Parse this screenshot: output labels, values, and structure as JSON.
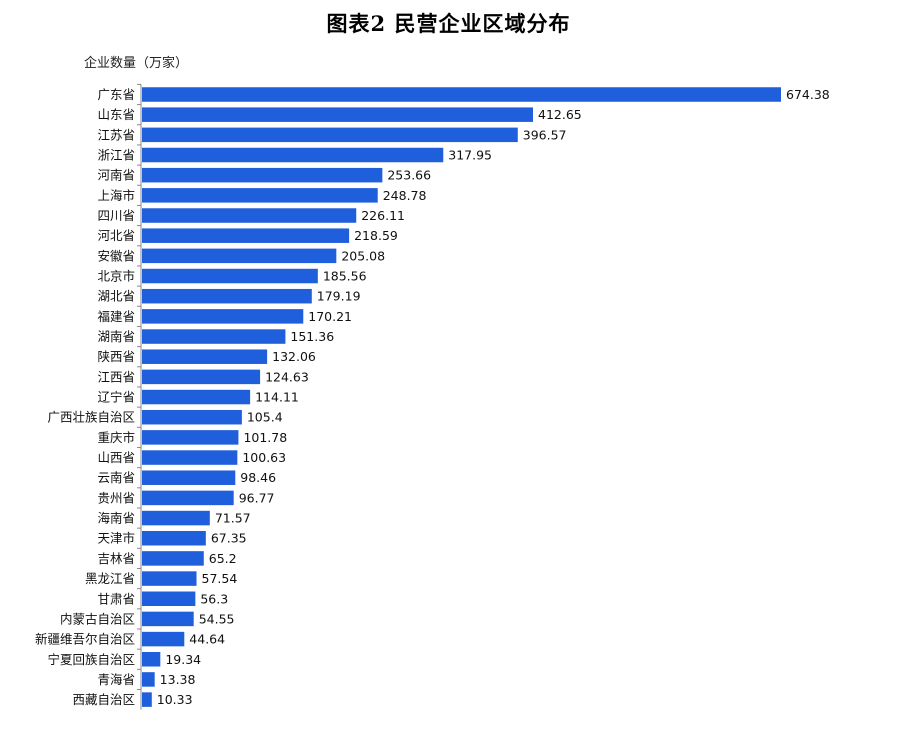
{
  "title": "图表2 民营企业区域分布",
  "unit_label": "企业数量（万家）",
  "colors": {
    "bar": "#1f5fdb",
    "axis": "#888888"
  },
  "chart_data": {
    "type": "bar",
    "orientation": "horizontal",
    "title": "图表2 民营企业区域分布",
    "ylabel": "企业数量（万家）",
    "categories": [
      "广东省",
      "山东省",
      "江苏省",
      "浙江省",
      "河南省",
      "上海市",
      "四川省",
      "河北省",
      "安徽省",
      "北京市",
      "湖北省",
      "福建省",
      "湖南省",
      "陕西省",
      "江西省",
      "辽宁省",
      "广西壮族自治区",
      "重庆市",
      "山西省",
      "云南省",
      "贵州省",
      "海南省",
      "天津市",
      "吉林省",
      "黑龙江省",
      "甘肃省",
      "内蒙古自治区",
      "新疆维吾尔自治区",
      "宁夏回族自治区",
      "青海省",
      "西藏自治区"
    ],
    "values": [
      674.38,
      412.65,
      396.57,
      317.95,
      253.66,
      248.78,
      226.11,
      218.59,
      205.08,
      185.56,
      179.19,
      170.21,
      151.36,
      132.06,
      124.63,
      114.11,
      105.4,
      101.78,
      100.63,
      98.46,
      96.77,
      71.57,
      67.35,
      65.2,
      57.54,
      56.3,
      54.55,
      44.64,
      19.34,
      13.38,
      10.33
    ],
    "value_labels": [
      "674.38",
      "412.65",
      "396.57",
      "317.95",
      "253.66",
      "248.78",
      "226.11",
      "218.59",
      "205.08",
      "185.56",
      "179.19",
      "170.21",
      "151.36",
      "132.06",
      "124.63",
      "114.11",
      "105.4",
      "101.78",
      "100.63",
      "98.46",
      "96.77",
      "71.57",
      "67.35",
      "65.2",
      "57.54",
      "56.3",
      "54.55",
      "44.64",
      "19.34",
      "13.38",
      "10.33"
    ],
    "xlim": [
      0,
      674.38
    ],
    "grid": false,
    "legend": "none"
  }
}
